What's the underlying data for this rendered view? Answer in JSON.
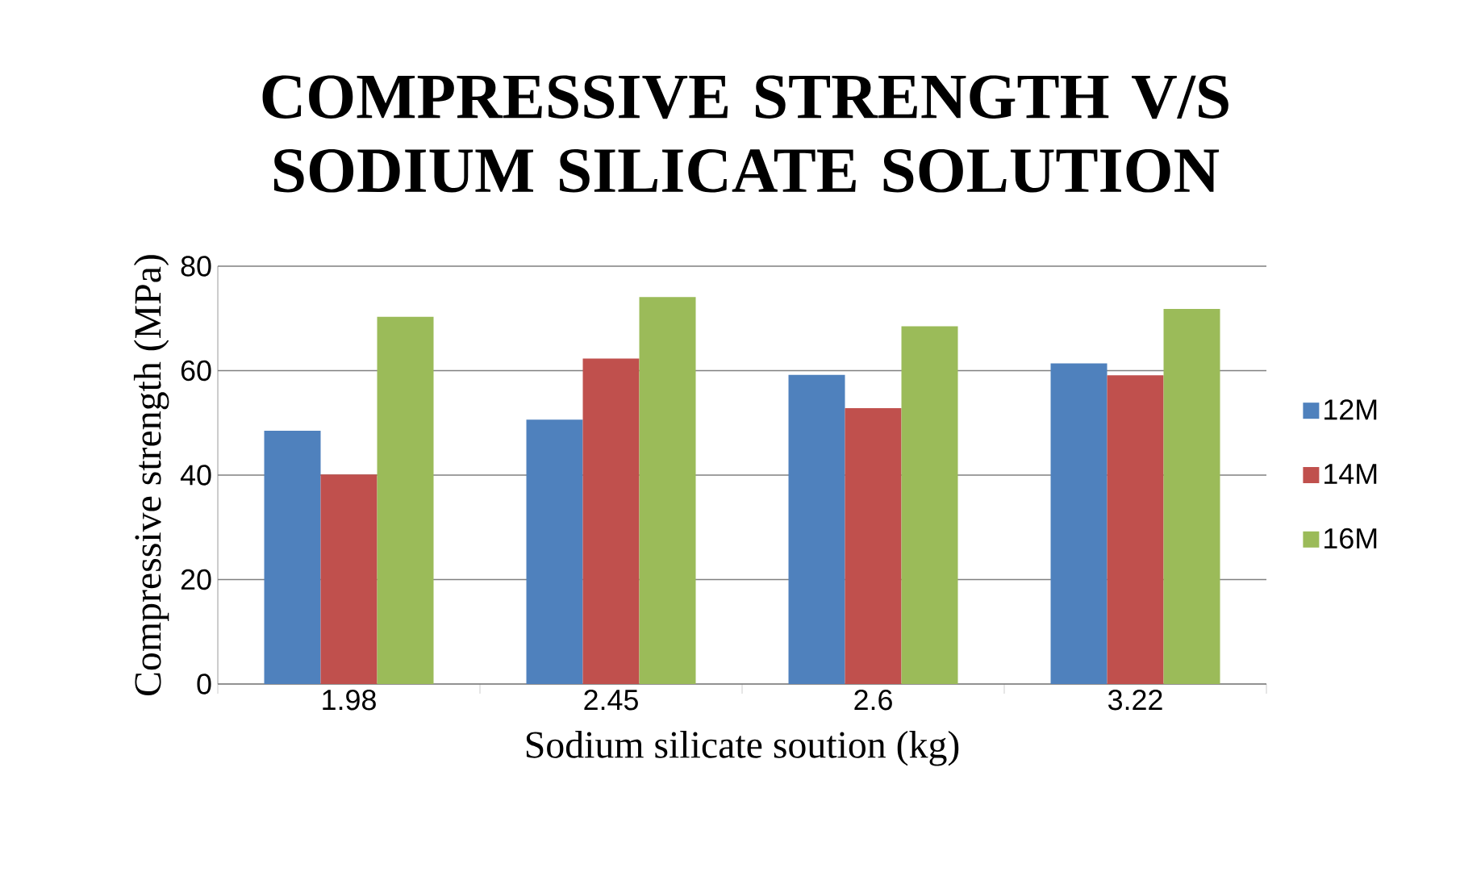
{
  "chart_data": {
    "type": "bar",
    "title": "COMPRESSIVE STRENGTH V/S SODIUM SILICATE SOLUTION",
    "xlabel": "Sodium silicate soution (kg)",
    "ylabel": "Compressive strength (MPa)",
    "categories": [
      "1.98",
      "2.45",
      "2.6",
      "3.22"
    ],
    "series": [
      {
        "name": "12M",
        "color": "#4f81bd",
        "values": [
          48.5,
          50.6,
          59.2,
          61.4
        ]
      },
      {
        "name": "14M",
        "color": "#c0504d",
        "values": [
          40.1,
          62.3,
          52.8,
          59.1
        ]
      },
      {
        "name": "16M",
        "color": "#9bbb59",
        "values": [
          70.3,
          74.1,
          68.5,
          71.8
        ]
      }
    ],
    "ylim": [
      0,
      80
    ],
    "yticks": [
      0,
      20,
      40,
      60,
      80
    ],
    "grid": "y",
    "legend": "right"
  }
}
